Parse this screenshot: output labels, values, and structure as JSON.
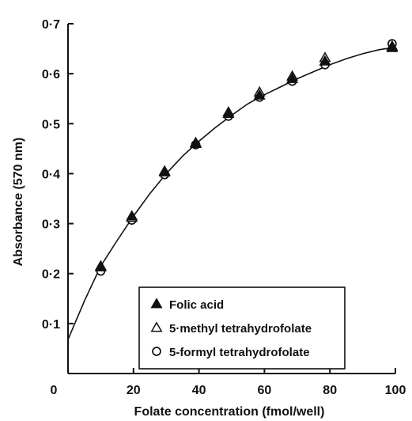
{
  "chart_data": {
    "type": "scatter",
    "xlabel": "Folate concentration (fmol/well)",
    "ylabel": "Absorbance (570 nm)",
    "xlim": [
      0,
      100
    ],
    "ylim": [
      0,
      0.7
    ],
    "x_ticks": [
      0,
      20,
      40,
      60,
      80,
      100
    ],
    "x_tick_labels": [
      "0",
      "20",
      "40",
      "60",
      "80",
      "100"
    ],
    "y_ticks": [
      0.1,
      0.2,
      0.3,
      0.4,
      0.5,
      0.6,
      0.7
    ],
    "y_tick_labels": [
      "0·1",
      "0·2",
      "0·3",
      "0·4",
      "0·5",
      "0·6",
      "0·7"
    ],
    "grid": false,
    "legend_position": "bottom-center",
    "series": [
      {
        "name": "Folic acid",
        "marker": "filled-triangle",
        "x": [
          10,
          19.5,
          29.5,
          39,
          49,
          58.5,
          68.5,
          78.5,
          99
        ],
        "y": [
          0.215,
          0.315,
          0.405,
          0.462,
          0.52,
          0.557,
          0.59,
          0.625,
          0.652
        ]
      },
      {
        "name": "5·methyl tetrahydrofolate",
        "marker": "open-triangle",
        "x": [
          10,
          19.5,
          29.5,
          39,
          49,
          58.5,
          68.5,
          78.5,
          99
        ],
        "y": [
          0.213,
          0.312,
          0.403,
          0.46,
          0.523,
          0.563,
          0.595,
          0.632,
          0.655
        ]
      },
      {
        "name": "5-formyl tetrahydrofolate",
        "marker": "open-circle",
        "x": [
          10,
          19.5,
          29.5,
          39,
          49,
          58.5,
          68.5,
          78.5,
          99
        ],
        "y": [
          0.205,
          0.307,
          0.398,
          0.458,
          0.515,
          0.553,
          0.585,
          0.618,
          0.66
        ]
      }
    ],
    "fit_curve": {
      "x": [
        0,
        5,
        10,
        15,
        20,
        25,
        30,
        35,
        40,
        45,
        50,
        55,
        60,
        65,
        70,
        75,
        80,
        85,
        90,
        95,
        99
      ],
      "y": [
        0.068,
        0.145,
        0.215,
        0.266,
        0.315,
        0.36,
        0.4,
        0.435,
        0.465,
        0.492,
        0.517,
        0.54,
        0.558,
        0.574,
        0.59,
        0.604,
        0.618,
        0.63,
        0.64,
        0.648,
        0.652
      ]
    },
    "colors": {
      "ink": "#111111",
      "background": "#ffffff"
    }
  }
}
